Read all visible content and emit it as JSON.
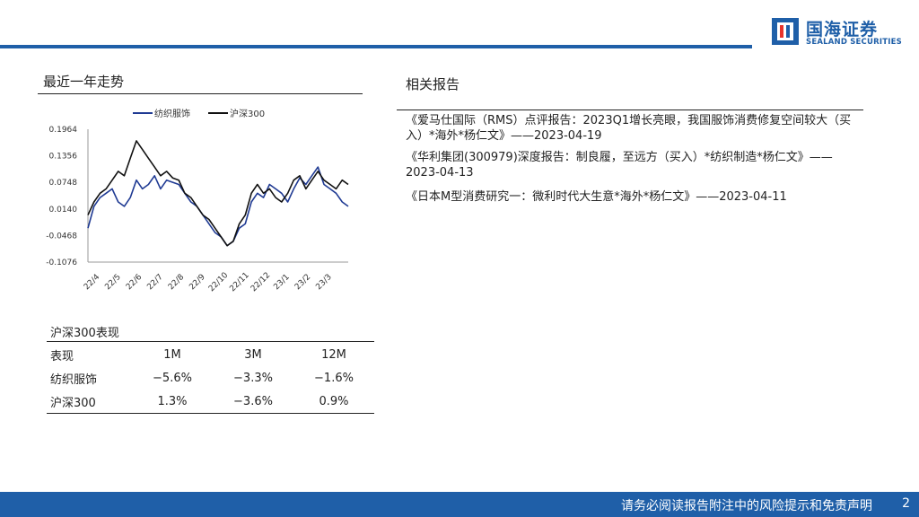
{
  "brand": {
    "name_cn": "国海证券",
    "name_en": "SEALAND SECURITIES",
    "color": "#1f5fa8"
  },
  "left_section_title": "最近一年走势",
  "right_section_title": "相关报告",
  "chart_data": {
    "type": "line",
    "legend_position": "top",
    "series": [
      {
        "name": "纺织服饰",
        "color": "#1f3a93",
        "values": [
          -0.03,
          0.02,
          0.04,
          0.05,
          0.06,
          0.03,
          0.02,
          0.04,
          0.08,
          0.06,
          0.07,
          0.09,
          0.06,
          0.08,
          0.075,
          0.07,
          0.05,
          0.03,
          0.02,
          0.0,
          -0.02,
          -0.04,
          -0.05,
          -0.07,
          -0.06,
          -0.03,
          -0.02,
          0.03,
          0.05,
          0.04,
          0.07,
          0.06,
          0.05,
          0.03,
          0.06,
          0.085,
          0.07,
          0.09,
          0.11,
          0.07,
          0.06,
          0.05,
          0.03,
          0.02
        ]
      },
      {
        "name": "沪深300",
        "color": "#111111",
        "values": [
          0.0,
          0.03,
          0.05,
          0.06,
          0.08,
          0.1,
          0.09,
          0.13,
          0.17,
          0.15,
          0.13,
          0.11,
          0.09,
          0.1,
          0.085,
          0.08,
          0.05,
          0.04,
          0.02,
          0.0,
          -0.01,
          -0.03,
          -0.05,
          -0.07,
          -0.06,
          -0.02,
          0.0,
          0.05,
          0.07,
          0.05,
          0.06,
          0.04,
          0.03,
          0.05,
          0.08,
          0.09,
          0.06,
          0.08,
          0.1,
          0.08,
          0.07,
          0.06,
          0.08,
          0.07
        ]
      }
    ],
    "x_tick_labels": [
      "22/4",
      "22/5",
      "22/6",
      "22/7",
      "22/8",
      "22/9",
      "22/10",
      "22/11",
      "22/12",
      "23/1",
      "23/2",
      "23/3"
    ],
    "y_tick_labels": [
      "0.1964",
      "0.1356",
      "0.0748",
      "0.0140",
      "-0.0468",
      "-0.1076"
    ],
    "ylim": [
      -0.1076,
      0.1964
    ],
    "grid": false
  },
  "performance": {
    "title": "沪深300表现",
    "headers": [
      "表现",
      "1M",
      "3M",
      "12M"
    ],
    "rows": [
      [
        "纺织服饰",
        "−5.6%",
        "−3.3%",
        "−1.6%"
      ],
      [
        "沪深300",
        "1.3%",
        "−3.6%",
        "0.9%"
      ]
    ]
  },
  "reports": [
    "《爱马仕国际（RMS）点评报告：2023Q1增长亮眼，我国服饰消费修复空间较大（买入）*海外*杨仁文》——2023-04-19",
    "《华利集团(300979)深度报告：制良履，至远方（买入）*纺织制造*杨仁文》——2023-04-13",
    "《日本M型消费研究一：微利时代大生意*海外*杨仁文》——2023-04-11"
  ],
  "footer": {
    "disclaimer": "请务必阅读报告附注中的风险提示和免责声明",
    "page": "2"
  }
}
